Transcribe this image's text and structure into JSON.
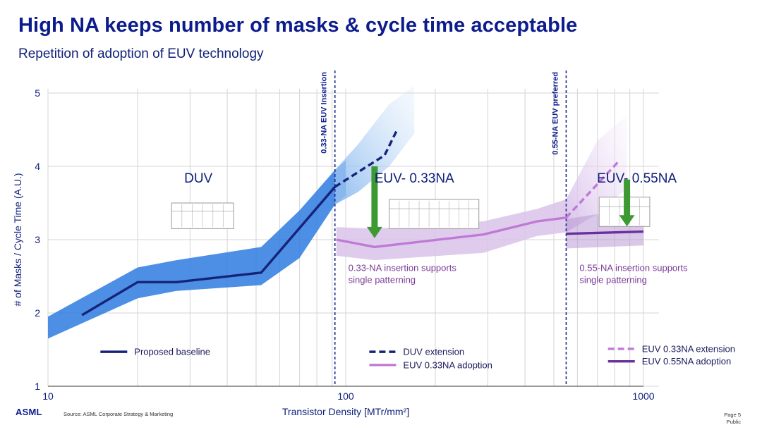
{
  "header": {
    "title": "High NA keeps number of masks & cycle time acceptable",
    "subtitle": "Repetition of adoption of EUV technology"
  },
  "footer": {
    "logo": "ASML",
    "source": "Source: ASML Corporate Strategy & Marketing",
    "page": "Page 5",
    "classification": "Public"
  },
  "colors": {
    "baseline": "#16237a",
    "baseline_band": "#2e7be0",
    "duv_ext_band": "#9cc6f2",
    "euv033_line": "#c07ad6",
    "euv033_band": "#d9c3ea",
    "euv055_line": "#6a2f9c",
    "euv055_band": "#b99ad3",
    "divider": "#1a2a8c",
    "arrow": "#3d9a32",
    "annotation": "#7b3a98"
  },
  "chart_data": {
    "type": "line",
    "xscale": "log",
    "xlim": [
      10,
      1000
    ],
    "ylim": [
      1,
      5
    ],
    "xlabel": "Transistor Density [MTr/mm²]",
    "ylabel": "# of Masks / Cycle Time (A.U.)",
    "x_ticks": [
      10,
      100,
      1000
    ],
    "x_tick_labels": [
      "10",
      "100",
      "1000"
    ],
    "y_ticks": [
      1,
      2,
      3,
      4,
      5
    ],
    "y_tick_labels": [
      "1",
      "2",
      "3",
      "4",
      "5"
    ],
    "grid": true,
    "series": [
      {
        "key": "baseline",
        "name": "Proposed baseline",
        "style": "solid",
        "x": [
          13,
          20,
          27,
          52,
          92
        ],
        "y": [
          1.97,
          2.42,
          2.42,
          2.55,
          3.72
        ]
      },
      {
        "key": "duv_ext",
        "name": "DUV extension",
        "style": "dashed",
        "x": [
          92,
          108,
          135,
          148
        ],
        "y": [
          3.72,
          3.9,
          4.15,
          4.48
        ]
      },
      {
        "key": "euv033",
        "name": "EUV 0.33NA adoption",
        "style": "solid",
        "x": [
          93,
          125,
          290,
          440,
          550
        ],
        "y": [
          3.0,
          2.9,
          3.07,
          3.25,
          3.3
        ]
      },
      {
        "key": "euv033_ext",
        "name": "EUV 0.33NA extension",
        "style": "dashed",
        "x": [
          550,
          830
        ],
        "y": [
          3.3,
          4.08
        ]
      },
      {
        "key": "euv055",
        "name": "EUV 0.55NA adoption",
        "style": "solid",
        "x": [
          550,
          1000
        ],
        "y": [
          3.08,
          3.11
        ]
      }
    ],
    "bands": [
      {
        "key": "baseline_band",
        "x": [
          10,
          20,
          27,
          52,
          70,
          92,
          100
        ],
        "upper": [
          1.95,
          2.62,
          2.72,
          2.9,
          3.4,
          3.95,
          4.08
        ],
        "lower": [
          1.65,
          2.2,
          2.3,
          2.38,
          2.75,
          3.48,
          3.6
        ]
      },
      {
        "key": "duv_ext_band",
        "x": [
          92,
          110,
          140,
          170
        ],
        "upper": [
          3.95,
          4.3,
          4.85,
          5.1
        ],
        "lower": [
          3.48,
          3.65,
          4.0,
          4.45
        ]
      },
      {
        "key": "euv033_band",
        "x": [
          93,
          125,
          290,
          440,
          550
        ],
        "upper": [
          3.17,
          3.15,
          3.25,
          3.42,
          3.55
        ],
        "lower": [
          2.78,
          2.72,
          2.82,
          3.05,
          3.1
        ]
      },
      {
        "key": "euv033_ext_band",
        "x": [
          550,
          700,
          880
        ],
        "upper": [
          3.55,
          4.35,
          4.7
        ],
        "lower": [
          3.1,
          3.35,
          3.7
        ]
      },
      {
        "key": "euv055_band",
        "x": [
          550,
          1000
        ],
        "upper": [
          3.28,
          3.45
        ],
        "lower": [
          2.88,
          2.92
        ]
      }
    ],
    "dividers": [
      {
        "x": 92,
        "label": "0.33-NA EUV Insertion"
      },
      {
        "x": 550,
        "label": "0.55-NA EUV preferred"
      }
    ],
    "region_labels": [
      {
        "text": "DUV",
        "x": 32,
        "y": 3.78
      },
      {
        "text": "EUV- 0.33NA",
        "x": 170,
        "y": 3.78
      },
      {
        "text": "EUV- 0.55NA",
        "x": 950,
        "y": 3.78
      }
    ],
    "arrows": [
      {
        "x": 125,
        "y_from": 4.0,
        "y_to": 3.02
      },
      {
        "x": 880,
        "y_from": 3.82,
        "y_to": 3.18
      }
    ],
    "annotations": [
      {
        "text": [
          "0.33-NA insertion supports",
          "single patterning"
        ],
        "x": 102,
        "y": 2.57
      },
      {
        "text": [
          "0.55-NA insertion supports",
          "single patterning"
        ],
        "x": 610,
        "y": 2.57
      }
    ],
    "legend": [
      {
        "series": "baseline",
        "x": 15,
        "y": 1.47
      },
      {
        "series": "duv_ext",
        "x": 120,
        "y": 1.47
      },
      {
        "series": "euv033",
        "x": 120,
        "y": 1.29
      },
      {
        "series": "euv033_ext",
        "x": 760,
        "y": 1.51
      },
      {
        "series": "euv055",
        "x": 760,
        "y": 1.34
      }
    ],
    "machines": [
      {
        "region": "DUV",
        "x0": 26,
        "x1": 42,
        "y0": 3.15,
        "y1": 3.5
      },
      {
        "region": "EUV- 0.33NA",
        "x0": 140,
        "x1": 280,
        "y0": 3.15,
        "y1": 3.55
      },
      {
        "region": "EUV- 0.55NA",
        "x0": 710,
        "x1": 1050,
        "y0": 3.18,
        "y1": 3.58
      }
    ]
  }
}
